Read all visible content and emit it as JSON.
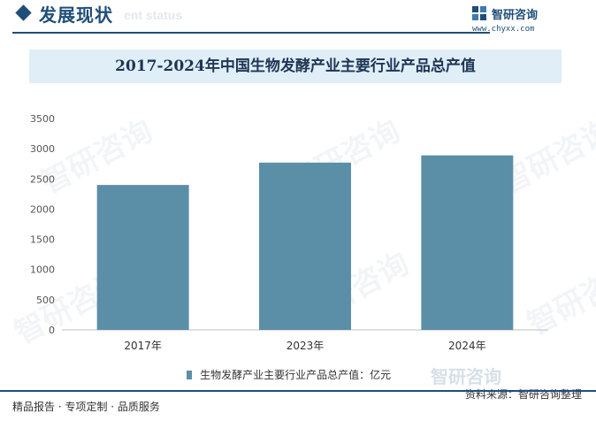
{
  "header": {
    "section_title": "发展现状",
    "section_subtitle": "ent status",
    "brand_name": "智研咨询",
    "brand_url": "www.chyxx.com",
    "brand_watermark": "智研咨询"
  },
  "chart_data": {
    "type": "bar",
    "title": "2017-2024年中国生物发酵产业主要行业产品总产值",
    "categories": [
      "2017年",
      "2023年",
      "2024年"
    ],
    "series": [
      {
        "name": "生物发酵产业主要行业产品总产值：亿元",
        "values": [
          2400,
          2770,
          2890
        ]
      }
    ],
    "ylim": [
      0,
      3500
    ],
    "yticks": [
      0,
      500,
      1000,
      1500,
      2000,
      2500,
      3000,
      3500
    ],
    "bar_color": "#5b8fa8",
    "legend_position": "bottom",
    "grid": false
  },
  "legend": {
    "label": "生物发酵产业主要行业产品总产值：亿元"
  },
  "footer": {
    "left": "精品报告 · 专项定制 · 品质服务",
    "right": "资料来源：智研咨询整理"
  },
  "colors": {
    "accent": "#1f4e79",
    "band": "#dfeef7",
    "bar": "#5b8fa8"
  }
}
